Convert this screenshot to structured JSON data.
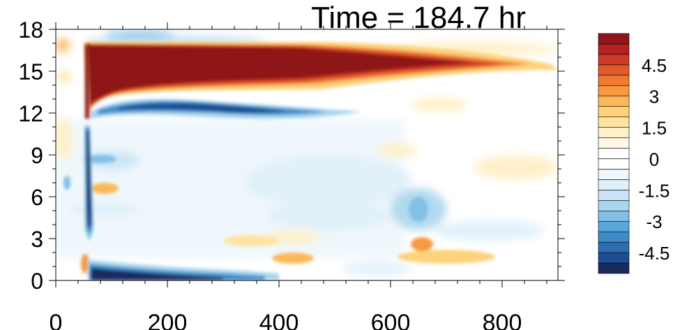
{
  "chart_data": {
    "type": "heatmap",
    "title": "Time = 184.7 hr",
    "xlabel": "",
    "ylabel": "",
    "xlim": [
      0,
      900
    ],
    "ylim": [
      0,
      18
    ],
    "x_ticks": [
      "0",
      "200",
      "400",
      "600",
      "800"
    ],
    "y_ticks": [
      "0",
      "3",
      "6",
      "9",
      "12",
      "15",
      "18"
    ],
    "colorbar": {
      "levels": [
        -5.5,
        -5,
        -4.5,
        -4,
        -3.5,
        -3,
        -2.5,
        -2,
        -1.5,
        -1,
        -0.5,
        0,
        0.5,
        1,
        1.5,
        2,
        2.5,
        3,
        3.5,
        4,
        4.5,
        5,
        5.5
      ],
      "labels": [
        "-4.5",
        "-3",
        "-1.5",
        "0",
        "1.5",
        "3",
        "4.5"
      ],
      "label_values": [
        -4.5,
        -3,
        -1.5,
        0,
        1.5,
        3,
        4.5
      ],
      "colors": [
        "#1c2a5e",
        "#1f4d94",
        "#2b6cb3",
        "#3d8cc8",
        "#5aa6da",
        "#82c0e6",
        "#a9d5ee",
        "#c8e4f4",
        "#dff0f9",
        "#eef7fc",
        "#ffffff",
        "#ffffff",
        "#fff8e6",
        "#fff0c8",
        "#fee4a0",
        "#fdd27a",
        "#fbb85a",
        "#f79a42",
        "#f07a32",
        "#e25a2a",
        "#d03a26",
        "#b52224",
        "#8e1519"
      ]
    },
    "features": [
      {
        "name": "upper positive band",
        "x": [
          55,
          900
        ],
        "y": [
          13.5,
          17
        ],
        "peak": 5.5
      },
      {
        "name": "negative band below upper band",
        "x": [
          60,
          520
        ],
        "y": [
          11.5,
          13
        ],
        "peak": -4.5
      },
      {
        "name": "lower negative band",
        "x": [
          60,
          400
        ],
        "y": [
          0,
          1.2
        ],
        "peak": -5.5
      },
      {
        "name": "vertical negative streak",
        "x": [
          55,
          65
        ],
        "y": [
          2,
          11
        ],
        "peak": -5.5
      },
      {
        "name": "warm patch near x=600",
        "x": [
          600,
          750
        ],
        "y": [
          1,
          3
        ],
        "peak": 2.5
      },
      {
        "name": "warm patch near x=400",
        "x": [
          390,
          460
        ],
        "y": [
          1,
          2.5
        ],
        "peak": 2
      }
    ]
  }
}
